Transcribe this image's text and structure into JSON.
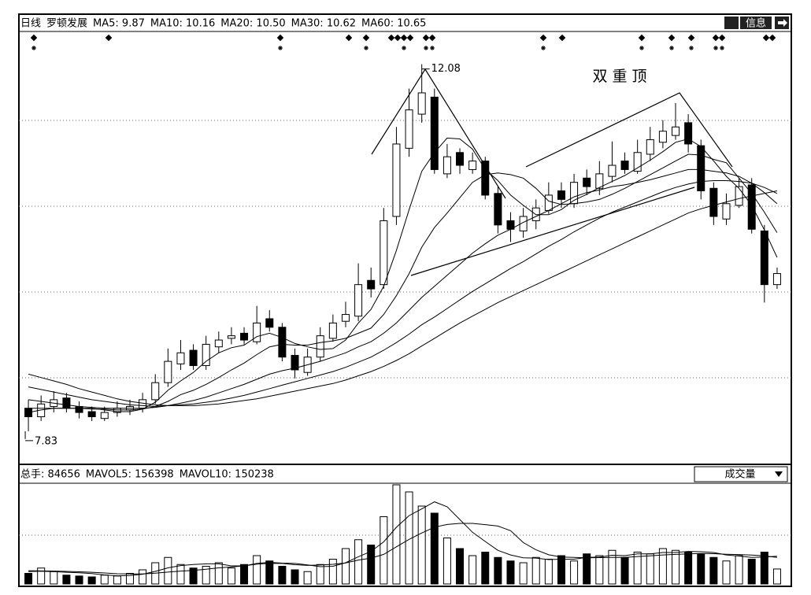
{
  "chart_data": [
    {
      "type": "candlestick",
      "period": "日线",
      "title": "罗顿发展",
      "info_button": "信息",
      "annotation": "双重顶",
      "high_label": 12.08,
      "low_label": 7.83,
      "ylim": [
        7.46,
        12.52
      ],
      "up_color": "#ffffff",
      "down_color": "#000000",
      "line_color": "#000000",
      "open": [
        8.1,
        8.0,
        8.12,
        8.22,
        8.12,
        8.06,
        7.98,
        8.05,
        8.08,
        8.1,
        8.2,
        8.4,
        8.62,
        8.78,
        8.6,
        8.82,
        8.92,
        8.98,
        8.88,
        9.15,
        9.05,
        8.72,
        8.52,
        8.7,
        8.92,
        9.12,
        9.18,
        9.6,
        9.55,
        10.35,
        11.15,
        11.55,
        11.75,
        10.85,
        11.1,
        10.9,
        11.0,
        10.62,
        10.3,
        10.18,
        10.3,
        10.42,
        10.65,
        10.5,
        10.8,
        10.68,
        10.82,
        11.0,
        10.88,
        11.08,
        11.22,
        11.3,
        11.45,
        11.18,
        10.68,
        10.32,
        10.48,
        10.72,
        10.18,
        9.55
      ],
      "high": [
        8.2,
        8.25,
        8.3,
        8.28,
        8.18,
        8.12,
        8.12,
        8.18,
        8.2,
        8.28,
        8.5,
        8.8,
        8.9,
        8.85,
        8.95,
        9.0,
        9.05,
        9.05,
        9.3,
        9.25,
        9.1,
        8.8,
        8.8,
        9.05,
        9.2,
        9.35,
        9.8,
        9.75,
        10.45,
        11.4,
        11.85,
        12.08,
        11.85,
        11.2,
        11.15,
        11.1,
        11.05,
        10.7,
        10.4,
        10.45,
        10.55,
        10.75,
        10.75,
        10.85,
        10.9,
        11.0,
        11.23,
        11.1,
        11.25,
        11.4,
        11.48,
        11.68,
        11.55,
        11.25,
        10.75,
        10.62,
        10.8,
        10.8,
        10.25,
        9.75
      ],
      "low": [
        7.83,
        7.95,
        8.05,
        8.05,
        7.98,
        7.95,
        7.95,
        8.0,
        8.02,
        8.05,
        8.15,
        8.35,
        8.55,
        8.55,
        8.55,
        8.75,
        8.85,
        8.85,
        8.85,
        9.0,
        8.65,
        8.45,
        8.48,
        8.65,
        8.88,
        9.05,
        9.12,
        9.4,
        9.5,
        10.25,
        11.05,
        11.45,
        10.85,
        10.8,
        10.85,
        10.85,
        10.55,
        10.15,
        10.05,
        10.1,
        10.2,
        10.38,
        10.45,
        10.45,
        10.6,
        10.6,
        10.75,
        10.85,
        10.85,
        11.0,
        11.15,
        11.25,
        11.1,
        10.55,
        10.25,
        10.25,
        10.45,
        10.15,
        9.34,
        9.5
      ],
      "close": [
        8.0,
        8.15,
        8.2,
        8.1,
        8.05,
        8.0,
        8.05,
        8.1,
        8.12,
        8.2,
        8.4,
        8.65,
        8.75,
        8.6,
        8.85,
        8.9,
        8.95,
        8.9,
        9.1,
        9.05,
        8.7,
        8.55,
        8.7,
        8.95,
        9.1,
        9.2,
        9.55,
        9.5,
        10.3,
        11.2,
        11.6,
        11.8,
        10.9,
        11.05,
        10.95,
        11.0,
        10.6,
        10.25,
        10.2,
        10.35,
        10.45,
        10.6,
        10.55,
        10.75,
        10.7,
        10.85,
        10.95,
        10.9,
        11.1,
        11.25,
        11.35,
        11.4,
        11.2,
        10.65,
        10.35,
        10.5,
        10.7,
        10.2,
        9.55,
        9.68
      ],
      "series": [
        {
          "name": "MA5: 9.87",
          "color": "#000000",
          "values": [
            8.05,
            8.08,
            8.1,
            8.1,
            8.1,
            8.1,
            8.08,
            8.06,
            8.06,
            8.09,
            8.17,
            8.31,
            8.42,
            8.52,
            8.65,
            8.75,
            8.81,
            8.84,
            8.94,
            8.98,
            8.93,
            8.86,
            8.82,
            8.79,
            8.8,
            8.9,
            9.1,
            9.26,
            9.53,
            9.95,
            10.43,
            10.88,
            11.1,
            11.27,
            11.26,
            11.14,
            10.9,
            10.77,
            10.6,
            10.48,
            10.37,
            10.37,
            10.43,
            10.54,
            10.61,
            10.69,
            10.76,
            10.83,
            10.92,
            11.01,
            11.11,
            11.22,
            11.26,
            11.17,
            11.0,
            10.82,
            10.68,
            10.48,
            10.19,
            9.87
          ]
        },
        {
          "name": "MA10: 10.16",
          "color": "#000000",
          "values": [
            8.1,
            8.1,
            8.1,
            8.1,
            8.1,
            8.09,
            8.09,
            8.08,
            8.08,
            8.09,
            8.12,
            8.18,
            8.26,
            8.31,
            8.38,
            8.46,
            8.55,
            8.63,
            8.73,
            8.82,
            8.85,
            8.84,
            8.84,
            8.87,
            8.89,
            8.92,
            8.98,
            9.04,
            9.2,
            9.42,
            9.68,
            9.99,
            10.22,
            10.39,
            10.57,
            10.75,
            10.84,
            10.86,
            10.84,
            10.8,
            10.68,
            10.53,
            10.49,
            10.5,
            10.52,
            10.55,
            10.61,
            10.68,
            10.76,
            10.84,
            10.92,
            11.0,
            11.08,
            11.07,
            11.02,
            10.98,
            10.8,
            10.62,
            10.4,
            10.16
          ]
        },
        {
          "name": "MA20: 10.50",
          "color": "#000000",
          "values": [
            8.2,
            8.18,
            8.16,
            8.14,
            8.12,
            8.11,
            8.1,
            8.1,
            8.1,
            8.1,
            8.11,
            8.13,
            8.16,
            8.19,
            8.23,
            8.28,
            8.33,
            8.38,
            8.44,
            8.5,
            8.54,
            8.57,
            8.61,
            8.65,
            8.7,
            8.75,
            8.82,
            8.88,
            8.98,
            9.1,
            9.25,
            9.4,
            9.53,
            9.66,
            9.79,
            9.92,
            10.03,
            10.13,
            10.2,
            10.28,
            10.35,
            10.42,
            10.5,
            10.58,
            10.63,
            10.66,
            10.7,
            10.72,
            10.75,
            10.78,
            10.82,
            10.86,
            10.9,
            10.9,
            10.88,
            10.86,
            10.82,
            10.74,
            10.63,
            10.5
          ]
        },
        {
          "name": "MA30: 10.62",
          "color": "#000000",
          "values": [
            8.35,
            8.32,
            8.29,
            8.26,
            8.23,
            8.2,
            8.18,
            8.16,
            8.14,
            8.13,
            8.12,
            8.13,
            8.14,
            8.15,
            8.17,
            8.19,
            8.22,
            8.25,
            8.29,
            8.33,
            8.37,
            8.41,
            8.45,
            8.49,
            8.53,
            8.58,
            8.64,
            8.7,
            8.78,
            8.87,
            8.97,
            9.08,
            9.17,
            9.27,
            9.37,
            9.47,
            9.56,
            9.65,
            9.74,
            9.82,
            9.91,
            10.0,
            10.08,
            10.17,
            10.25,
            10.33,
            10.4,
            10.46,
            10.52,
            10.58,
            10.64,
            10.69,
            10.73,
            10.76,
            10.77,
            10.77,
            10.76,
            10.74,
            10.69,
            10.62
          ]
        },
        {
          "name": "MA60: 10.65",
          "color": "#000000",
          "values": [
            8.5,
            8.46,
            8.42,
            8.38,
            8.33,
            8.29,
            8.25,
            8.21,
            8.18,
            8.16,
            8.14,
            8.13,
            8.13,
            8.13,
            8.14,
            8.15,
            8.17,
            8.19,
            8.21,
            8.24,
            8.27,
            8.3,
            8.33,
            8.36,
            8.39,
            8.43,
            8.48,
            8.53,
            8.59,
            8.66,
            8.74,
            8.83,
            8.92,
            9.01,
            9.1,
            9.18,
            9.26,
            9.34,
            9.41,
            9.48,
            9.55,
            9.62,
            9.69,
            9.76,
            9.83,
            9.9,
            9.97,
            10.04,
            10.11,
            10.18,
            10.25,
            10.32,
            10.39,
            10.44,
            10.48,
            10.52,
            10.56,
            10.59,
            10.62,
            10.65
          ]
        }
      ]
    },
    {
      "type": "volume",
      "title": "总手: 84656",
      "selector": "成交量",
      "ylim": [
        0,
        560000
      ],
      "values": [
        60000,
        90000,
        70000,
        50000,
        45000,
        40000,
        50000,
        45000,
        60000,
        80000,
        120000,
        150000,
        110000,
        90000,
        100000,
        120000,
        90000,
        110000,
        160000,
        130000,
        100000,
        80000,
        70000,
        110000,
        140000,
        200000,
        250000,
        220000,
        380000,
        560000,
        520000,
        440000,
        400000,
        260000,
        200000,
        160000,
        180000,
        150000,
        130000,
        120000,
        150000,
        140000,
        160000,
        130000,
        170000,
        160000,
        190000,
        150000,
        180000,
        170000,
        200000,
        190000,
        180000,
        170000,
        150000,
        130000,
        160000,
        140000,
        180000,
        84656
      ],
      "series": [
        {
          "name": "MAVOL5: 156398",
          "color": "#000000",
          "values": [
            70000,
            72000,
            70000,
            66000,
            63000,
            59000,
            51000,
            46000,
            48000,
            55000,
            71000,
            91000,
            104000,
            110000,
            114000,
            114000,
            102000,
            102000,
            116000,
            122000,
            118000,
            116000,
            108000,
            98000,
            100000,
            120000,
            154000,
            184000,
            238000,
            320000,
            386000,
            424000,
            464000,
            436000,
            364000,
            292000,
            240000,
            190000,
            164000,
            148000,
            146000,
            138000,
            140000,
            140000,
            150000,
            152000,
            162000,
            160000,
            170000,
            170000,
            178000,
            178000,
            184000,
            182000,
            178000,
            164000,
            158000,
            150000,
            152000,
            156398
          ]
        },
        {
          "name": "MAVOL10: 150238",
          "color": "#000000",
          "values": [
            75000,
            74000,
            73000,
            71000,
            69000,
            66000,
            62000,
            58000,
            57000,
            57000,
            61000,
            67000,
            73000,
            77000,
            83000,
            91000,
            96000,
            102000,
            112000,
            117000,
            116000,
            109000,
            105000,
            107000,
            111000,
            119000,
            135000,
            146000,
            167000,
            210000,
            252000,
            288000,
            321000,
            336000,
            342000,
            342000,
            335000,
            327000,
            301000,
            234000,
            193000,
            165000,
            152000,
            150000,
            148000,
            149000,
            150000,
            150000,
            155000,
            159000,
            164000,
            167000,
            170000,
            172000,
            171000,
            168000,
            166000,
            163000,
            159000,
            150238
          ]
        }
      ]
    }
  ]
}
